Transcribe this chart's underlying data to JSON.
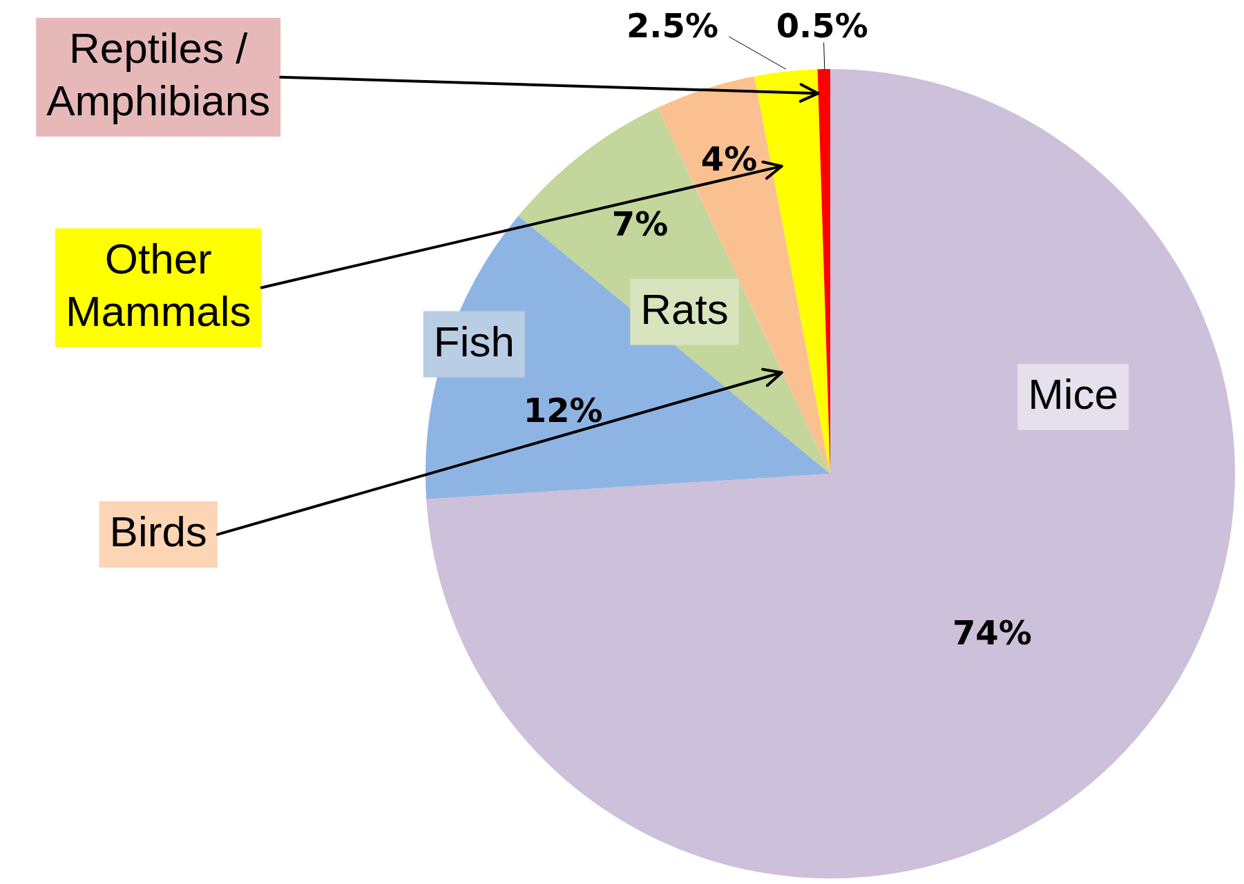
{
  "chart_data": {
    "type": "pie",
    "categories": [
      "Mice",
      "Fish",
      "Rats",
      "Birds",
      "Other Mammals",
      "Reptiles / Amphibians"
    ],
    "values": [
      74,
      12,
      7,
      4,
      2.5,
      0.5
    ],
    "value_labels": [
      "74%",
      "12%",
      "7%",
      "4%",
      "2.5%",
      "0.5%"
    ],
    "colors": [
      "#ccc0da",
      "#8eb4e3",
      "#c3d69b",
      "#fac090",
      "#ffff00",
      "#ff0000"
    ],
    "legend": false
  }
}
